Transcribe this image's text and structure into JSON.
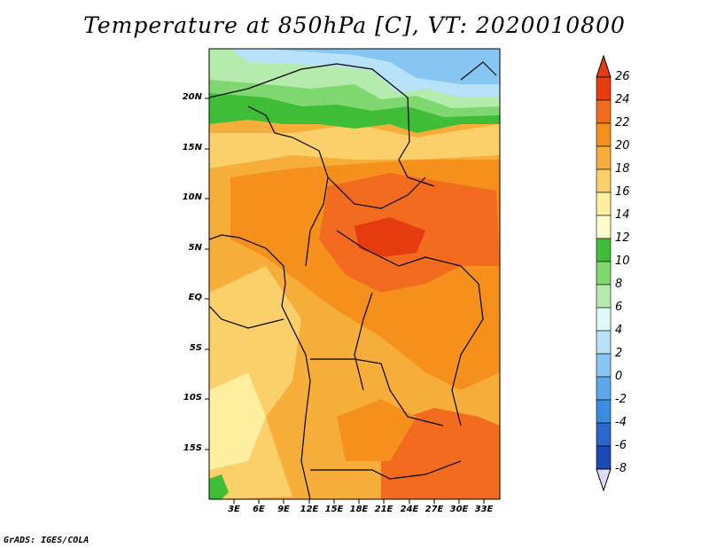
{
  "title": "Temperature at 850hPa [C], VT: 2020010800",
  "credit": "GrADS: IGES/COLA",
  "map": {
    "lat_labels": [
      "20N",
      "15N",
      "10N",
      "5N",
      "EQ",
      "5S",
      "10S",
      "15S"
    ],
    "lon_labels": [
      "3E",
      "6E",
      "9E",
      "12E",
      "15E",
      "18E",
      "21E",
      "24E",
      "27E",
      "30E",
      "33E"
    ]
  },
  "colorbar": {
    "labels": [
      "26",
      "24",
      "22",
      "20",
      "18",
      "16",
      "14",
      "12",
      "10",
      "8",
      "6",
      "4",
      "2",
      "0",
      "-2",
      "-4",
      "-6",
      "-8"
    ],
    "colors": [
      "#e53b0e",
      "#f36b1e",
      "#f5901c",
      "#f7ad3a",
      "#fbd06a",
      "#fdeea0",
      "#fefcc8",
      "#3fbd37",
      "#7fd86f",
      "#b5ebad",
      "#e0f8f8",
      "#b7e2f9",
      "#87c5f3",
      "#5ca8eb",
      "#3b8be0",
      "#2b67cf",
      "#1b49b6",
      "#0d2b96",
      "#0a0f6e"
    ]
  },
  "colors": {
    "hot": "#e53b0e",
    "warm": "#f36b1e",
    "mid": "#f5901c",
    "light": "#f7ad3a",
    "pale": "#fbd06a",
    "cream": "#fdeea0",
    "green": "#3fbd37",
    "lgreen": "#7fd86f",
    "blue": "#87c5f3",
    "lblue": "#b7e2f9"
  }
}
